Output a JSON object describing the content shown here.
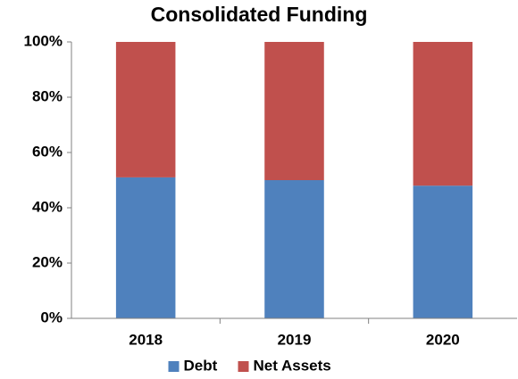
{
  "chart_data": {
    "type": "bar",
    "stacked": true,
    "title": "Consolidated Funding",
    "categories": [
      "2018",
      "2019",
      "2020"
    ],
    "series": [
      {
        "name": "Debt",
        "color": "#4f81bd",
        "values": [
          51,
          50,
          48
        ]
      },
      {
        "name": "Net Assets",
        "color": "#c0504d",
        "values": [
          49,
          50,
          52
        ]
      }
    ],
    "ylim": [
      0,
      100
    ],
    "yticks": [
      {
        "value": 0,
        "label": "0%"
      },
      {
        "value": 20,
        "label": "20%"
      },
      {
        "value": 40,
        "label": "40%"
      },
      {
        "value": 60,
        "label": "60%"
      },
      {
        "value": 80,
        "label": "80%"
      },
      {
        "value": 100,
        "label": "100%"
      }
    ],
    "grid": false,
    "legend": "bottom"
  }
}
